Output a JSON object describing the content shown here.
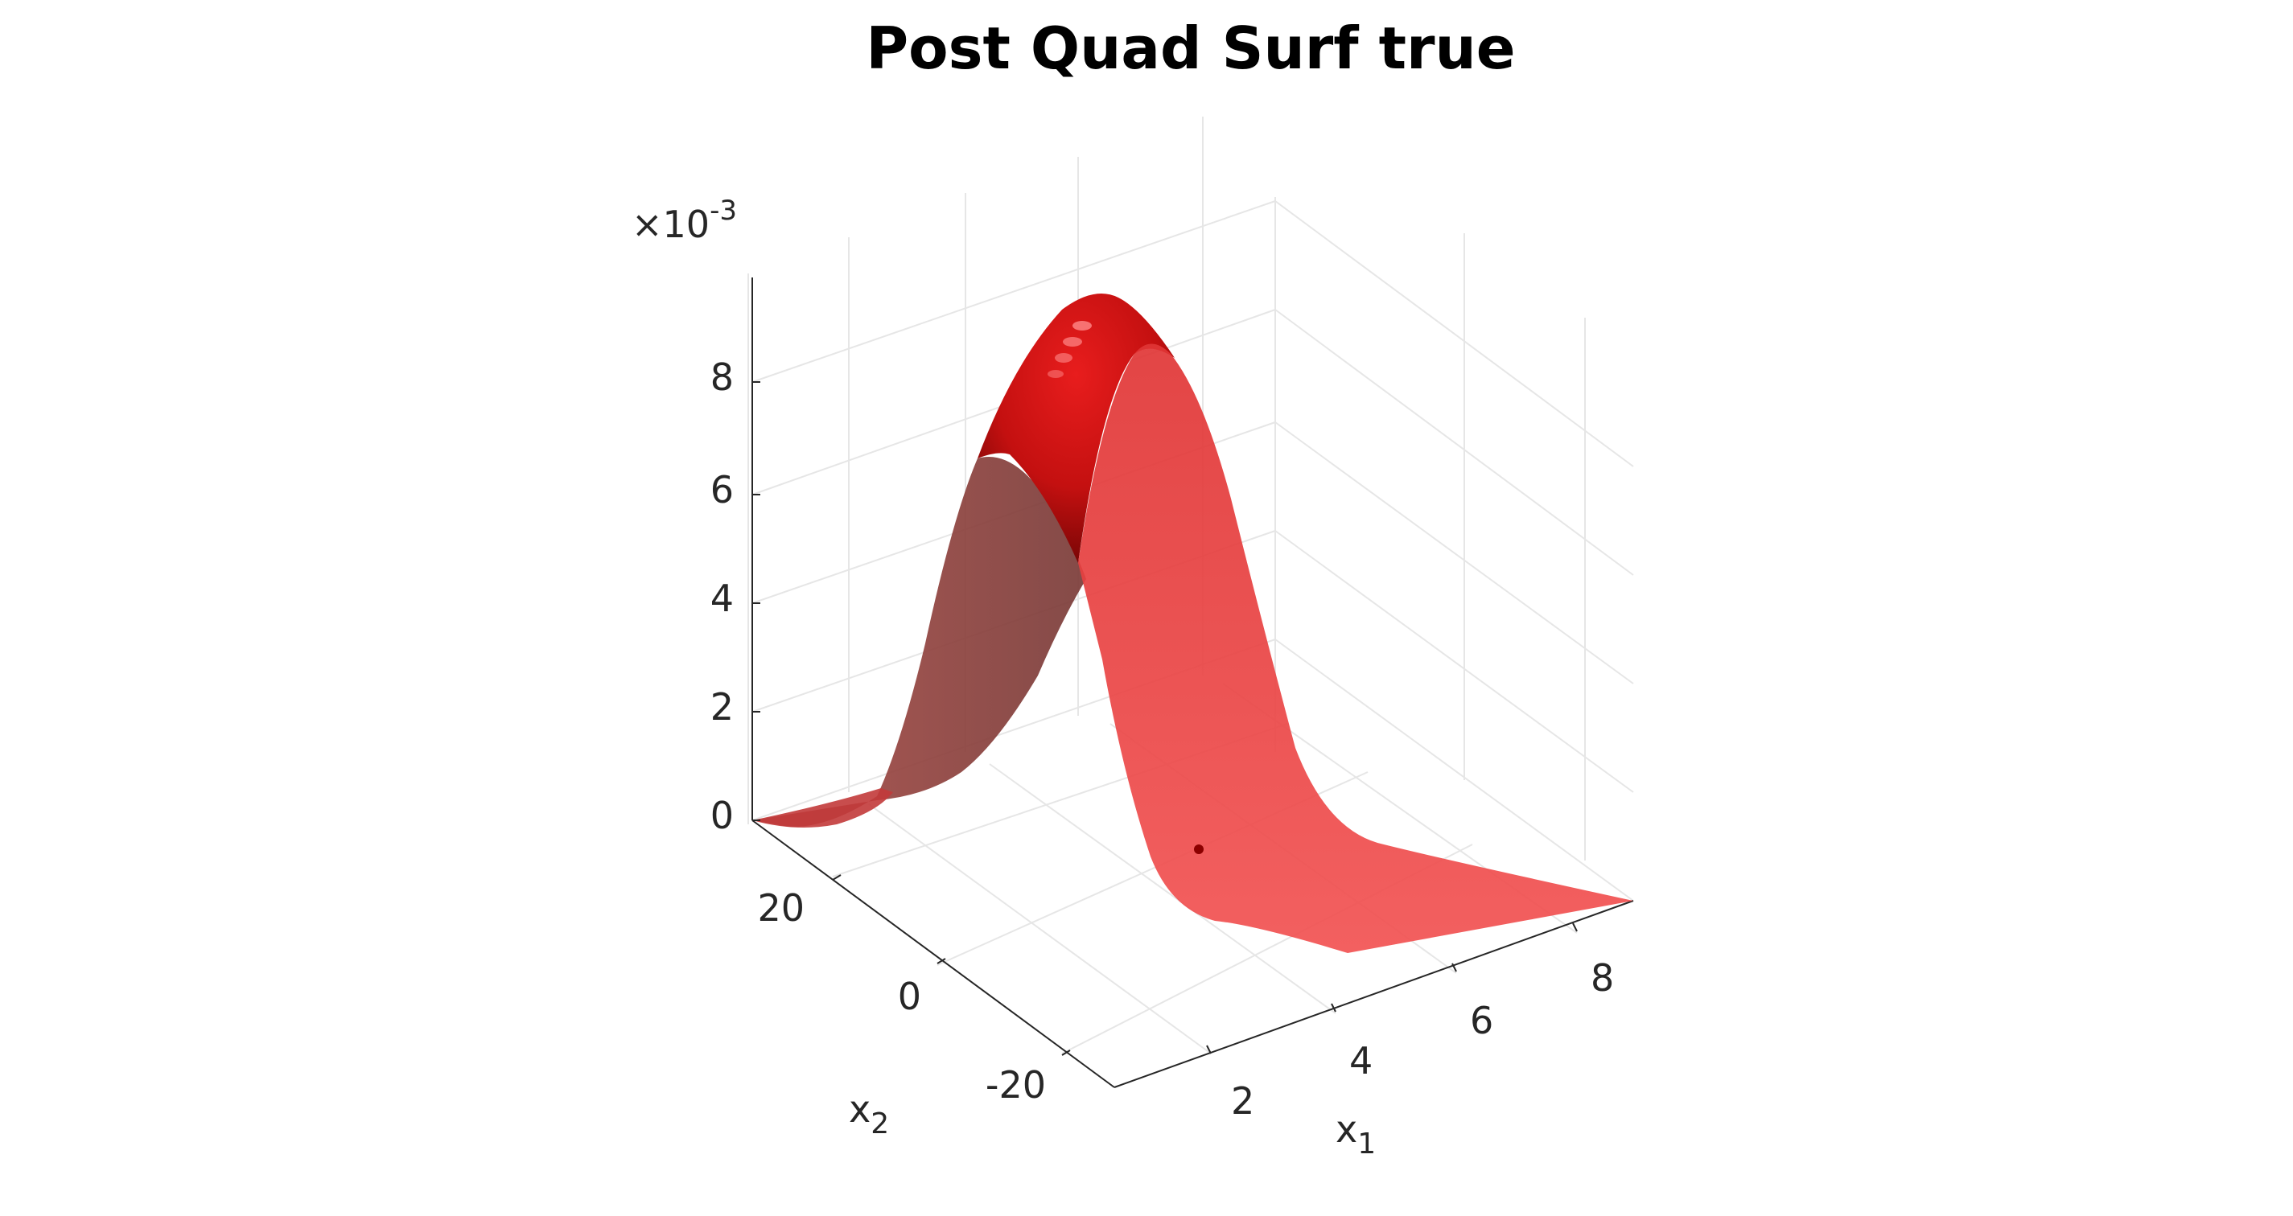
{
  "chart_data": {
    "type": "surface",
    "title": "Post Quad Surf true",
    "xlabel": "x",
    "xlabel_sub": "1",
    "ylabel": "x",
    "ylabel_sub": "2",
    "zlabel": "",
    "z_multiplier_prefix": "×10",
    "z_multiplier_exp": "-3",
    "x_ticks": [
      "2",
      "4",
      "6",
      "8"
    ],
    "y_ticks": [
      "-20",
      "0",
      "20"
    ],
    "z_ticks": [
      "0",
      "2",
      "4",
      "6",
      "8"
    ],
    "xlim": [
      0.2,
      9.1
    ],
    "ylim": [
      -30,
      30
    ],
    "zlim": [
      0,
      0.01
    ],
    "grid": true,
    "surface_color": "#ff3030",
    "marker_color": "#8b0000",
    "peak_value": 0.0096,
    "peak_x": 1.0,
    "peak_y": 30,
    "marker": {
      "x": 6.2,
      "y": 0,
      "z": 0.0006
    }
  }
}
